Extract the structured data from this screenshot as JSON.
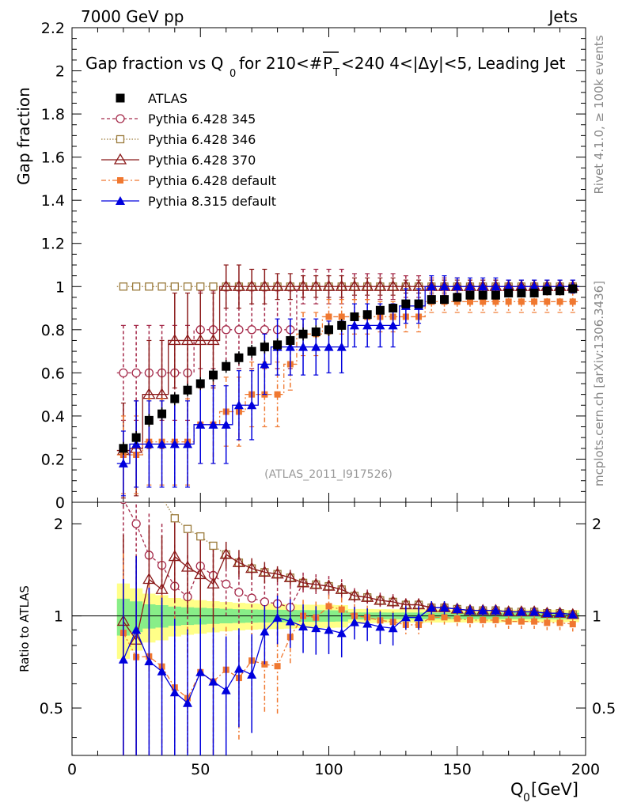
{
  "chart_data": {
    "type": "scatter",
    "header_left": "7000 GeV pp",
    "header_right": "Jets",
    "title": "Gap fraction vs Q",
    "title_sub": "0",
    "title_rest": " for 210<#",
    "title_pt": "P",
    "title_pt_sub": "T",
    "title_tail": "<240  4<|Δy|<5, Leading Jet",
    "ylabel": "Gap fraction",
    "ratio_ylabel": "Ratio to ATLAS",
    "xlabel_main": "Q",
    "xlabel_sub": "0",
    "xlabel_unit": " [GeV]",
    "analysis_id": "(ATLAS_2011_I917526)",
    "side_top": "Rivet 4.1.0, ≥ 100k events",
    "side_bottom": "mcplots.cern.ch [arXiv:1306.3436]",
    "xlim": [
      0,
      200
    ],
    "ylim": [
      0,
      2.2
    ],
    "ratio_ylim": [
      0.35,
      2.35
    ],
    "x_ticks": [
      "0",
      "50",
      "100",
      "150",
      "200"
    ],
    "y_ticks": [
      "0",
      "0.2",
      "0.4",
      "0.6",
      "0.8",
      "1",
      "1.2",
      "1.4",
      "1.6",
      "1.8",
      "2",
      "2.2"
    ],
    "ratio_ticks": [
      "0.5",
      "1",
      "2"
    ],
    "x": [
      20,
      25,
      30,
      35,
      40,
      45,
      50,
      55,
      60,
      65,
      70,
      75,
      80,
      85,
      90,
      95,
      100,
      105,
      110,
      115,
      120,
      125,
      130,
      135,
      140,
      145,
      150,
      155,
      160,
      165,
      170,
      175,
      180,
      185,
      190,
      195
    ],
    "series": [
      {
        "name": "ATLAS",
        "color": "#000000",
        "marker": "square-filled",
        "dash": "none",
        "values": [
          0.25,
          0.3,
          0.38,
          0.41,
          0.48,
          0.52,
          0.55,
          0.59,
          0.63,
          0.67,
          0.7,
          0.72,
          0.73,
          0.75,
          0.78,
          0.79,
          0.8,
          0.82,
          0.86,
          0.87,
          0.89,
          0.9,
          0.92,
          0.92,
          0.94,
          0.94,
          0.95,
          0.96,
          0.96,
          0.96,
          0.97,
          0.97,
          0.97,
          0.98,
          0.98,
          0.99
        ],
        "errors": [
          0.03,
          0.03,
          0.03,
          0.03,
          0.03,
          0.03,
          0.03,
          0.03,
          0.03,
          0.03,
          0.03,
          0.03,
          0.03,
          0.03,
          0.03,
          0.03,
          0.03,
          0.03,
          0.02,
          0.02,
          0.02,
          0.02,
          0.02,
          0.02,
          0.02,
          0.02,
          0.02,
          0.02,
          0.02,
          0.02,
          0.02,
          0.02,
          0.02,
          0.02,
          0.02,
          0.02
        ]
      },
      {
        "name": "Pythia 6.428 345",
        "color": "#a52a4a",
        "marker": "circle-open",
        "dash": "4,3",
        "values": [
          0.6,
          0.6,
          0.6,
          0.6,
          0.6,
          0.6,
          0.8,
          0.8,
          0.8,
          0.8,
          0.8,
          0.8,
          0.8,
          0.8,
          1,
          1,
          1,
          1,
          1,
          1,
          1,
          1,
          1,
          1,
          1,
          1,
          1,
          1,
          1,
          1,
          1,
          1,
          1,
          1,
          1,
          1
        ],
        "errors": [
          0.22,
          0.22,
          0.22,
          0.22,
          0.22,
          0.22,
          0.18,
          0.18,
          0.18,
          0.18,
          0.18,
          0.18,
          0.18,
          0.18,
          0.08,
          0.08,
          0.08,
          0.08,
          0.06,
          0.06,
          0.06,
          0.06,
          0.05,
          0.05,
          0.04,
          0.04,
          0.04,
          0.03,
          0.03,
          0.03,
          0.03,
          0.03,
          0.03,
          0.03,
          0.03,
          0.03
        ]
      },
      {
        "name": "Pythia 6.428 346",
        "color": "#9a7a3a",
        "marker": "square-open",
        "dash": "1.5,2",
        "values": [
          1,
          1,
          1,
          1,
          1,
          1,
          1,
          1,
          1,
          1,
          1,
          1,
          1,
          1,
          1,
          1,
          1,
          1,
          1,
          1,
          1,
          1,
          1,
          1,
          1,
          1,
          1,
          1,
          1,
          1,
          1,
          1,
          1,
          1,
          1,
          1
        ],
        "errors": [
          0,
          0,
          0,
          0,
          0,
          0,
          0,
          0,
          0,
          0,
          0,
          0,
          0,
          0,
          0,
          0,
          0,
          0,
          0,
          0,
          0,
          0,
          0,
          0,
          0,
          0,
          0,
          0,
          0,
          0,
          0,
          0,
          0,
          0,
          0,
          0
        ]
      },
      {
        "name": "Pythia 6.428 370",
        "color": "#8b1a1a",
        "marker": "triangle-open",
        "dash": "none",
        "values": [
          0.24,
          0.25,
          0.5,
          0.5,
          0.75,
          0.75,
          0.75,
          0.75,
          1,
          1,
          1,
          1,
          1,
          1,
          1,
          1,
          1,
          1,
          1,
          1,
          1,
          1,
          1,
          1,
          1,
          1,
          1,
          1,
          1,
          1,
          1,
          1,
          1,
          1,
          1,
          1
        ],
        "errors": [
          0.22,
          0.22,
          0.25,
          0.25,
          0.22,
          0.22,
          0.22,
          0.22,
          0.1,
          0.1,
          0.08,
          0.08,
          0.06,
          0.06,
          0.05,
          0.05,
          0.05,
          0.05,
          0.04,
          0.04,
          0.04,
          0.04,
          0.03,
          0.03,
          0.03,
          0.03,
          0.03,
          0.03,
          0.03,
          0.03,
          0.03,
          0.03,
          0.03,
          0.03,
          0.03,
          0.03
        ]
      },
      {
        "name": "Pythia 6.428 default",
        "color": "#f07830",
        "marker": "square-small",
        "dash": "6,3,2,3",
        "values": [
          0.22,
          0.22,
          0.28,
          0.28,
          0.28,
          0.28,
          0.36,
          0.36,
          0.42,
          0.42,
          0.5,
          0.5,
          0.5,
          0.64,
          0.78,
          0.78,
          0.86,
          0.86,
          0.86,
          0.86,
          0.86,
          0.86,
          0.86,
          0.86,
          0.93,
          0.93,
          0.93,
          0.93,
          0.93,
          0.93,
          0.93,
          0.93,
          0.93,
          0.93,
          0.93,
          0.93
        ],
        "errors": [
          0.18,
          0.18,
          0.2,
          0.2,
          0.2,
          0.2,
          0.18,
          0.18,
          0.16,
          0.16,
          0.15,
          0.15,
          0.15,
          0.12,
          0.1,
          0.1,
          0.08,
          0.08,
          0.08,
          0.08,
          0.07,
          0.07,
          0.07,
          0.07,
          0.05,
          0.05,
          0.05,
          0.05,
          0.05,
          0.05,
          0.05,
          0.05,
          0.05,
          0.05,
          0.05,
          0.05
        ]
      },
      {
        "name": "Pythia 8.315 default",
        "color": "#0000dd",
        "marker": "triangle-filled",
        "dash": "none",
        "values": [
          0.18,
          0.27,
          0.27,
          0.27,
          0.27,
          0.27,
          0.36,
          0.36,
          0.36,
          0.45,
          0.45,
          0.64,
          0.72,
          0.72,
          0.72,
          0.72,
          0.72,
          0.72,
          0.82,
          0.82,
          0.82,
          0.82,
          0.91,
          0.91,
          1,
          1,
          1,
          1,
          1,
          1,
          1,
          1,
          1,
          1,
          1,
          1
        ],
        "errors": [
          0.15,
          0.2,
          0.2,
          0.2,
          0.2,
          0.2,
          0.18,
          0.18,
          0.18,
          0.16,
          0.16,
          0.14,
          0.13,
          0.13,
          0.13,
          0.13,
          0.12,
          0.12,
          0.1,
          0.1,
          0.1,
          0.1,
          0.08,
          0.08,
          0.05,
          0.05,
          0.04,
          0.04,
          0.04,
          0.04,
          0.03,
          0.03,
          0.03,
          0.03,
          0.03,
          0.03
        ]
      }
    ]
  }
}
